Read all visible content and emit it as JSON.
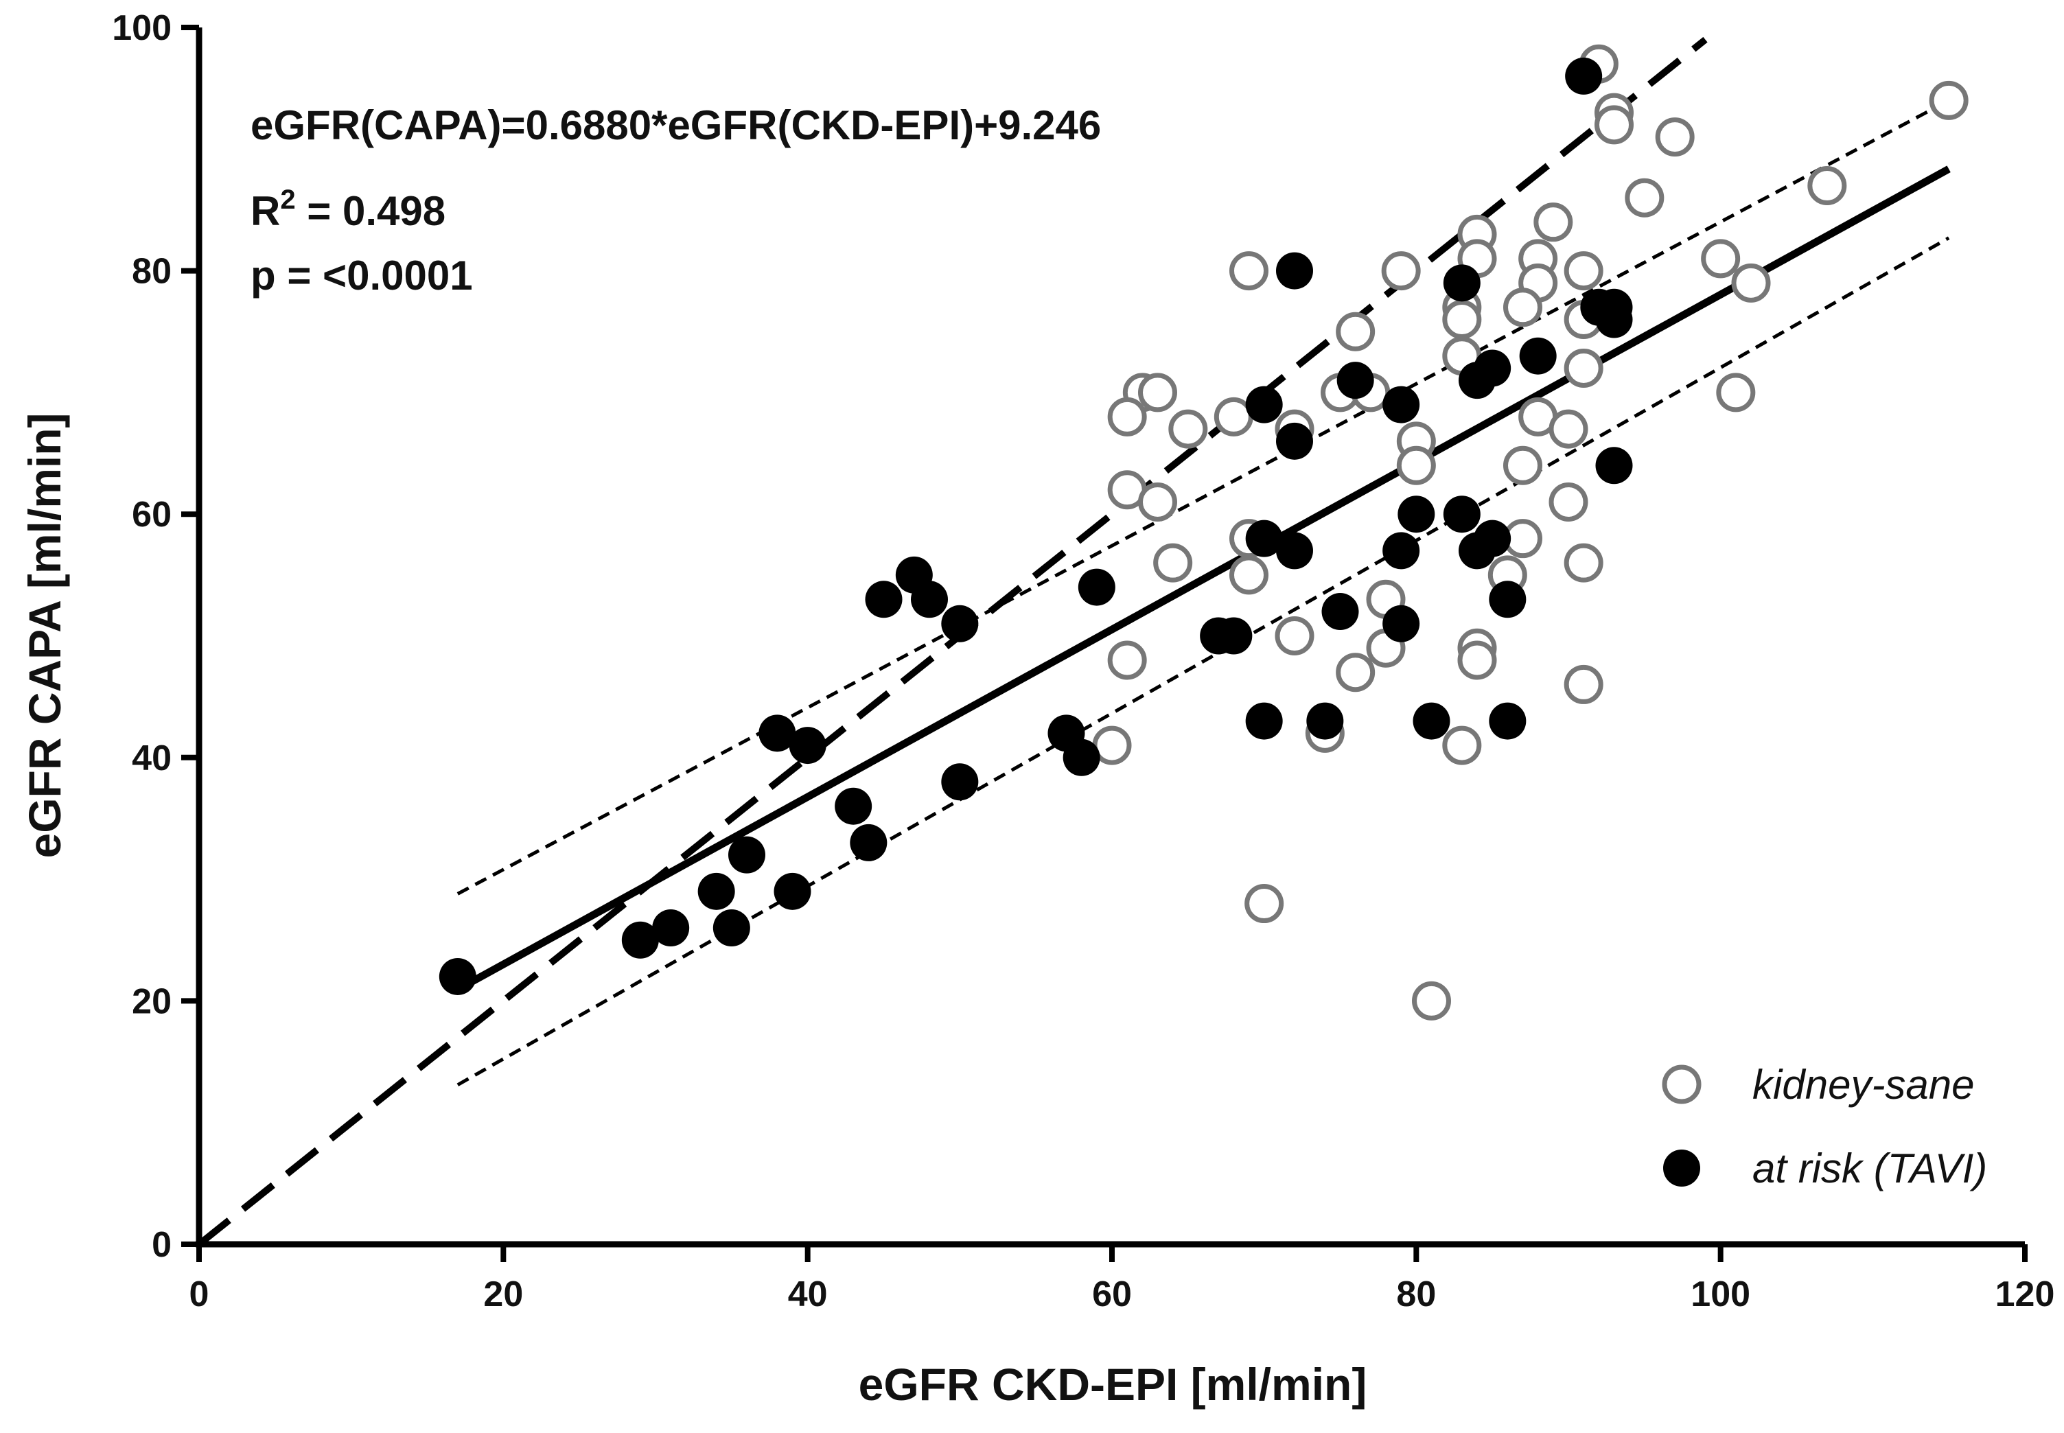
{
  "chart_data": {
    "type": "scatter",
    "xlabel": "eGFR CKD-EPI [ml/min]",
    "ylabel": "eGFR CAPA [ml/min]",
    "xlim": [
      0,
      120
    ],
    "ylim": [
      0,
      100
    ],
    "x_ticks": [
      "0",
      "20",
      "40",
      "60",
      "80",
      "100",
      "120"
    ],
    "y_ticks": [
      "0",
      "20",
      "40",
      "60",
      "80",
      "100"
    ],
    "grid": false,
    "legend_position": "bottom-right",
    "annotations": {
      "equation": "eGFR(CAPA)=0.6880*eGFR(CKD-EPI)+9.246",
      "r2_prefix": "R",
      "r2_sup": "2",
      "r2_value": " = 0.498",
      "p_value": "p = <0.0001"
    },
    "series": [
      {
        "name": "kidney-sane",
        "marker": "open-circle",
        "color": "#777777",
        "points": [
          [
            92,
            97
          ],
          [
            93,
            93
          ],
          [
            93,
            92
          ],
          [
            97,
            91
          ],
          [
            115,
            94
          ],
          [
            95,
            86
          ],
          [
            107,
            87
          ],
          [
            89,
            84
          ],
          [
            84,
            83
          ],
          [
            88,
            81
          ],
          [
            84,
            81
          ],
          [
            79,
            80
          ],
          [
            69,
            80
          ],
          [
            91,
            80
          ],
          [
            100,
            81
          ],
          [
            102,
            79
          ],
          [
            88,
            79
          ],
          [
            83,
            77
          ],
          [
            87,
            77
          ],
          [
            83,
            76
          ],
          [
            91,
            76
          ],
          [
            76,
            75
          ],
          [
            83,
            73
          ],
          [
            91,
            72
          ],
          [
            62,
            70
          ],
          [
            63,
            70
          ],
          [
            75,
            70
          ],
          [
            77,
            70
          ],
          [
            101,
            70
          ],
          [
            61,
            68
          ],
          [
            68,
            68
          ],
          [
            88,
            68
          ],
          [
            65,
            67
          ],
          [
            72,
            67
          ],
          [
            90,
            67
          ],
          [
            80,
            66
          ],
          [
            80,
            64
          ],
          [
            87,
            64
          ],
          [
            61,
            62
          ],
          [
            63,
            61
          ],
          [
            90,
            61
          ],
          [
            69,
            58
          ],
          [
            87,
            58
          ],
          [
            64,
            56
          ],
          [
            91,
            56
          ],
          [
            69,
            55
          ],
          [
            86,
            55
          ],
          [
            78,
            53
          ],
          [
            72,
            50
          ],
          [
            78,
            49
          ],
          [
            84,
            49
          ],
          [
            84,
            48
          ],
          [
            61,
            48
          ],
          [
            76,
            47
          ],
          [
            91,
            46
          ],
          [
            60,
            41
          ],
          [
            74,
            42
          ],
          [
            83,
            41
          ],
          [
            70,
            28
          ],
          [
            81,
            20
          ]
        ]
      },
      {
        "name": "at risk (TAVI)",
        "marker": "filled-circle",
        "color": "#000000",
        "points": [
          [
            91,
            96
          ],
          [
            72,
            80
          ],
          [
            83,
            79
          ],
          [
            93,
            77
          ],
          [
            92,
            77
          ],
          [
            93,
            76
          ],
          [
            88,
            73
          ],
          [
            85,
            72
          ],
          [
            84,
            71
          ],
          [
            76,
            71
          ],
          [
            79,
            69
          ],
          [
            70,
            69
          ],
          [
            72,
            66
          ],
          [
            93,
            64
          ],
          [
            80,
            60
          ],
          [
            83,
            60
          ],
          [
            85,
            58
          ],
          [
            70,
            58
          ],
          [
            84,
            57
          ],
          [
            72,
            57
          ],
          [
            79,
            57
          ],
          [
            47,
            55
          ],
          [
            45,
            53
          ],
          [
            48,
            53
          ],
          [
            86,
            53
          ],
          [
            59,
            54
          ],
          [
            75,
            52
          ],
          [
            50,
            51
          ],
          [
            79,
            51
          ],
          [
            67,
            50
          ],
          [
            68,
            50
          ],
          [
            70,
            43
          ],
          [
            74,
            43
          ],
          [
            81,
            43
          ],
          [
            86,
            43
          ],
          [
            38,
            42
          ],
          [
            40,
            41
          ],
          [
            57,
            42
          ],
          [
            58,
            40
          ],
          [
            50,
            38
          ],
          [
            43,
            36
          ],
          [
            44,
            33
          ],
          [
            36,
            32
          ],
          [
            34,
            29
          ],
          [
            39,
            29
          ],
          [
            35,
            26
          ],
          [
            31,
            26
          ],
          [
            29,
            25
          ],
          [
            17,
            22
          ]
        ]
      }
    ],
    "lines": [
      {
        "name": "regression",
        "style": "solid",
        "x": [
          17,
          115
        ],
        "y": [
          20.94,
          88.37
        ]
      },
      {
        "name": "ci-upper",
        "style": "dotted",
        "x": [
          17,
          115
        ],
        "y": [
          28.8,
          94.0
        ]
      },
      {
        "name": "ci-lower",
        "style": "dotted",
        "x": [
          17,
          115
        ],
        "y": [
          13.1,
          82.7
        ]
      },
      {
        "name": "identity",
        "style": "dashed",
        "x": [
          0,
          99
        ],
        "y": [
          0,
          99
        ]
      }
    ]
  }
}
